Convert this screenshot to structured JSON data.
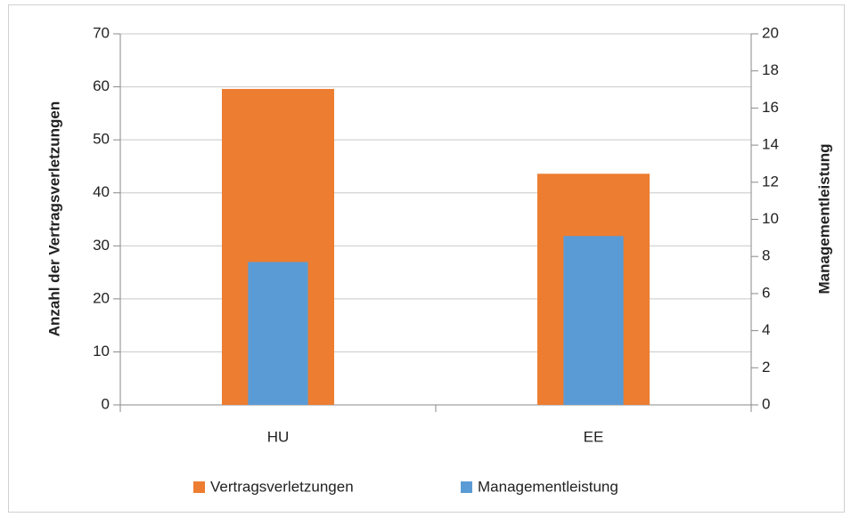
{
  "chart_data": {
    "type": "bar",
    "categories": [
      "HU",
      "EE"
    ],
    "series": [
      {
        "name": "Vertragsverletzungen",
        "color": "#ed7d31",
        "values": [
          59.6,
          43.6
        ]
      },
      {
        "name": "Managementleistung",
        "color": "#5b9bd5",
        "values": [
          7.7,
          9.1
        ],
        "axis": "y2"
      }
    ],
    "y_label": "Anzahl der Vertragsverletzungen",
    "y2_label": "Managementleistung",
    "ylim": [
      0,
      70
    ],
    "yticks": [
      0,
      10,
      20,
      30,
      40,
      50,
      60,
      70
    ],
    "y2lim": [
      0,
      20
    ],
    "y2ticks": [
      0,
      2,
      4,
      6,
      8,
      10,
      12,
      14,
      16,
      18,
      20
    ],
    "grid": true,
    "legend": "bottom"
  }
}
